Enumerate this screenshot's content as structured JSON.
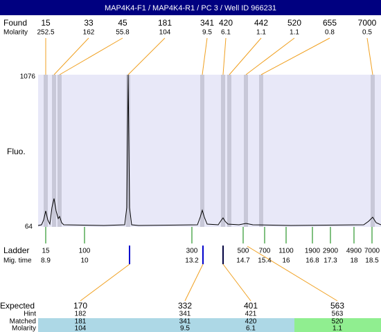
{
  "title": "MAP4K4-F1 / MAP4K4-R1 / PC 3 / Well ID 966231",
  "found": {
    "label": "Found",
    "molarity_label": "Molarity",
    "sizes": [
      15,
      33,
      45,
      181,
      341,
      420,
      442,
      520,
      655,
      7000
    ],
    "molarity": [
      252.5,
      162,
      55.8,
      104,
      9.5,
      6.1,
      1.1,
      1.1,
      0.8,
      0.5
    ]
  },
  "axis": {
    "label": "Fluo.",
    "max": 1076,
    "min": 64
  },
  "ladder": {
    "label": "Ladder",
    "time_label": "Mig. time",
    "sizes": [
      15,
      100,
      300,
      500,
      700,
      1100,
      1900,
      2900,
      4900,
      7000
    ],
    "times": [
      8.9,
      10,
      13.2,
      14.7,
      15.4,
      16,
      16.8,
      17.3,
      18,
      18.5
    ]
  },
  "results": {
    "expected_label": "Expected",
    "hint_label": "Hint",
    "matched_label": "Matched",
    "molarity_label": "Molarity",
    "expected": [
      170,
      332,
      401,
      563
    ],
    "hint": [
      182,
      341,
      421,
      563
    ],
    "matched": [
      181,
      341,
      420,
      520
    ],
    "molarity": [
      104,
      9.5,
      6.1,
      1.1
    ]
  }
}
